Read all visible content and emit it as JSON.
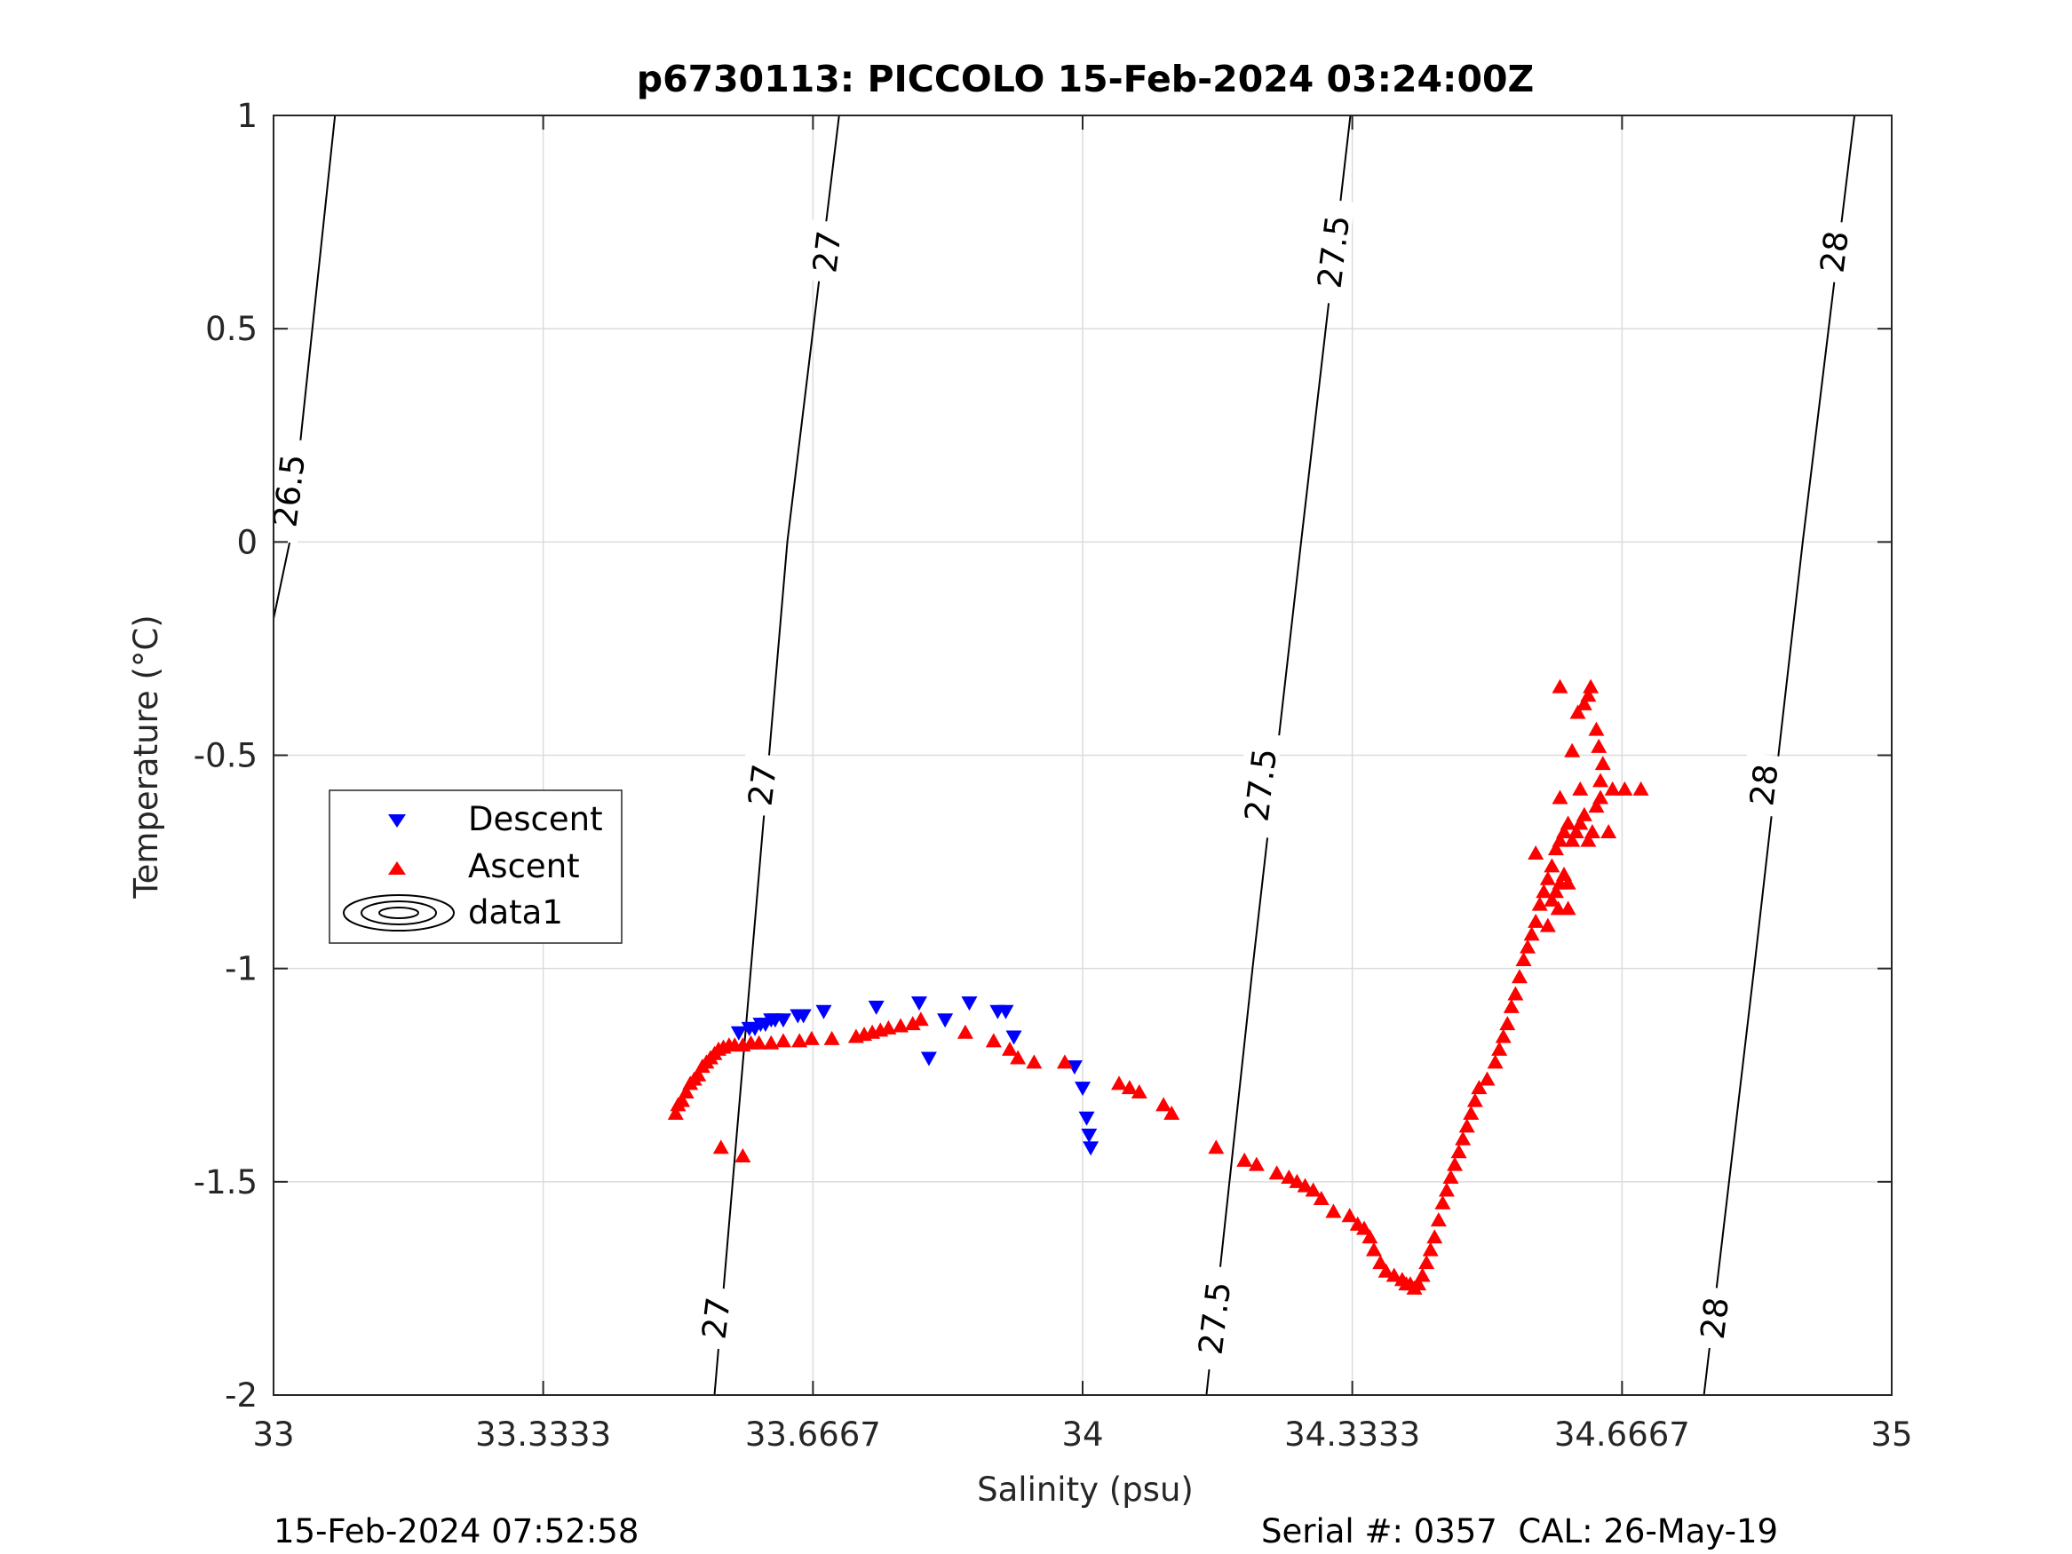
{
  "chart_data": {
    "type": "scatter",
    "title": "p6730113: PICCOLO 15-Feb-2024 03:24:00Z",
    "xlabel": "Salinity (psu)",
    "ylabel": "Temperature (°C)",
    "xlim": [
      33,
      35
    ],
    "ylim": [
      -2,
      1
    ],
    "x_ticks": [
      "33",
      "33.3333",
      "33.6667",
      "34",
      "34.3333",
      "34.6667",
      "35"
    ],
    "y_ticks": [
      "-2",
      "-1.5",
      "-1",
      "-0.5",
      "0",
      "0.5",
      "1"
    ],
    "grid": true,
    "legend": {
      "position": "left-middle",
      "entries": [
        {
          "label": "Descent",
          "marker": "triangle-down",
          "color": "#0000ff"
        },
        {
          "label": "Ascent",
          "marker": "triangle-up",
          "color": "#ff0000"
        },
        {
          "label": "data1",
          "marker": "contour",
          "color": "#000000"
        }
      ]
    },
    "contours": [
      {
        "label": "26.5",
        "points": [
          [
            33.0,
            -0.18
          ],
          [
            33.02,
            0.0
          ],
          [
            33.076,
            1.0
          ]
        ]
      },
      {
        "label": "27",
        "points": [
          [
            33.545,
            -2.0
          ],
          [
            33.59,
            -1.0
          ],
          [
            33.635,
            0.0
          ],
          [
            33.699,
            1.0
          ]
        ]
      },
      {
        "label": "27.5",
        "points": [
          [
            34.153,
            -2.0
          ],
          [
            34.21,
            -1.0
          ],
          [
            34.27,
            0.0
          ],
          [
            34.331,
            1.0
          ]
        ]
      },
      {
        "label": "28",
        "points": [
          [
            34.768,
            -2.0
          ],
          [
            34.83,
            -1.0
          ],
          [
            34.89,
            0.0
          ],
          [
            34.954,
            1.0
          ]
        ]
      }
    ],
    "contour_labels": [
      {
        "level": "26.5",
        "x": 33.02,
        "y": 0.12
      },
      {
        "level": "27",
        "x": 33.685,
        "y": 0.68
      },
      {
        "level": "27",
        "x": 33.605,
        "y": -0.57
      },
      {
        "level": "27",
        "x": 33.548,
        "y": -1.82
      },
      {
        "level": "27.5",
        "x": 34.311,
        "y": 0.68
      },
      {
        "level": "27.5",
        "x": 34.221,
        "y": -0.57
      },
      {
        "level": "27.5",
        "x": 34.164,
        "y": -1.82
      },
      {
        "level": "28",
        "x": 34.93,
        "y": 0.68
      },
      {
        "level": "28",
        "x": 34.843,
        "y": -0.57
      },
      {
        "level": "28",
        "x": 34.782,
        "y": -1.82
      }
    ],
    "series": [
      {
        "name": "Descent",
        "marker": "triangle-down",
        "color": "#0000ff",
        "points": [
          [
            33.575,
            -1.15
          ],
          [
            33.588,
            -1.14
          ],
          [
            33.595,
            -1.14
          ],
          [
            33.602,
            -1.13
          ],
          [
            33.608,
            -1.13
          ],
          [
            33.615,
            -1.12
          ],
          [
            33.62,
            -1.12
          ],
          [
            33.63,
            -1.12
          ],
          [
            33.648,
            -1.11
          ],
          [
            33.655,
            -1.11
          ],
          [
            33.68,
            -1.1
          ],
          [
            33.745,
            -1.09
          ],
          [
            33.798,
            -1.08
          ],
          [
            33.81,
            -1.21
          ],
          [
            33.83,
            -1.12
          ],
          [
            33.86,
            -1.08
          ],
          [
            33.895,
            -1.1
          ],
          [
            33.905,
            -1.1
          ],
          [
            33.915,
            -1.16
          ],
          [
            33.99,
            -1.23
          ],
          [
            34.0,
            -1.28
          ],
          [
            34.005,
            -1.35
          ],
          [
            34.008,
            -1.39
          ],
          [
            34.01,
            -1.42
          ]
        ]
      },
      {
        "name": "Ascent",
        "marker": "triangle-up",
        "color": "#ff0000",
        "points": [
          [
            33.497,
            -1.34
          ],
          [
            33.5,
            -1.32
          ],
          [
            33.505,
            -1.31
          ],
          [
            33.51,
            -1.29
          ],
          [
            33.515,
            -1.27
          ],
          [
            33.52,
            -1.26
          ],
          [
            33.525,
            -1.25
          ],
          [
            33.53,
            -1.23
          ],
          [
            33.535,
            -1.22
          ],
          [
            33.54,
            -1.21
          ],
          [
            33.545,
            -1.2
          ],
          [
            33.55,
            -1.19
          ],
          [
            33.556,
            -1.185
          ],
          [
            33.563,
            -1.18
          ],
          [
            33.57,
            -1.18
          ],
          [
            33.58,
            -1.18
          ],
          [
            33.59,
            -1.175
          ],
          [
            33.6,
            -1.175
          ],
          [
            33.615,
            -1.175
          ],
          [
            33.63,
            -1.17
          ],
          [
            33.65,
            -1.17
          ],
          [
            33.665,
            -1.165
          ],
          [
            33.69,
            -1.165
          ],
          [
            33.72,
            -1.16
          ],
          [
            33.73,
            -1.155
          ],
          [
            33.74,
            -1.15
          ],
          [
            33.75,
            -1.145
          ],
          [
            33.76,
            -1.14
          ],
          [
            33.775,
            -1.135
          ],
          [
            33.79,
            -1.13
          ],
          [
            33.8,
            -1.12
          ],
          [
            33.553,
            -1.42
          ],
          [
            33.58,
            -1.44
          ],
          [
            33.855,
            -1.15
          ],
          [
            33.89,
            -1.17
          ],
          [
            33.91,
            -1.19
          ],
          [
            33.92,
            -1.21
          ],
          [
            33.94,
            -1.22
          ],
          [
            33.978,
            -1.22
          ],
          [
            34.045,
            -1.27
          ],
          [
            34.058,
            -1.28
          ],
          [
            34.07,
            -1.29
          ],
          [
            34.1,
            -1.32
          ],
          [
            34.11,
            -1.34
          ],
          [
            34.165,
            -1.42
          ],
          [
            34.2,
            -1.45
          ],
          [
            34.215,
            -1.46
          ],
          [
            34.24,
            -1.48
          ],
          [
            34.255,
            -1.49
          ],
          [
            34.265,
            -1.5
          ],
          [
            34.275,
            -1.51
          ],
          [
            34.285,
            -1.52
          ],
          [
            34.295,
            -1.54
          ],
          [
            34.31,
            -1.57
          ],
          [
            34.33,
            -1.58
          ],
          [
            34.34,
            -1.6
          ],
          [
            34.348,
            -1.61
          ],
          [
            34.355,
            -1.63
          ],
          [
            34.36,
            -1.66
          ],
          [
            34.368,
            -1.69
          ],
          [
            34.375,
            -1.71
          ],
          [
            34.385,
            -1.72
          ],
          [
            34.395,
            -1.73
          ],
          [
            34.4,
            -1.74
          ],
          [
            34.405,
            -1.74
          ],
          [
            34.41,
            -1.75
          ],
          [
            34.415,
            -1.74
          ],
          [
            34.42,
            -1.72
          ],
          [
            34.425,
            -1.69
          ],
          [
            34.43,
            -1.66
          ],
          [
            34.435,
            -1.63
          ],
          [
            34.44,
            -1.59
          ],
          [
            34.445,
            -1.55
          ],
          [
            34.45,
            -1.52
          ],
          [
            34.455,
            -1.49
          ],
          [
            34.46,
            -1.46
          ],
          [
            34.465,
            -1.43
          ],
          [
            34.47,
            -1.4
          ],
          [
            34.475,
            -1.37
          ],
          [
            34.48,
            -1.34
          ],
          [
            34.485,
            -1.31
          ],
          [
            34.49,
            -1.28
          ],
          [
            34.5,
            -1.26
          ],
          [
            34.51,
            -1.22
          ],
          [
            34.515,
            -1.19
          ],
          [
            34.52,
            -1.16
          ],
          [
            34.525,
            -1.13
          ],
          [
            34.53,
            -1.09
          ],
          [
            34.535,
            -1.06
          ],
          [
            34.54,
            -1.02
          ],
          [
            34.545,
            -0.98
          ],
          [
            34.55,
            -0.95
          ],
          [
            34.555,
            -0.92
          ],
          [
            34.56,
            -0.89
          ],
          [
            34.565,
            -0.85
          ],
          [
            34.57,
            -0.82
          ],
          [
            34.575,
            -0.79
          ],
          [
            34.58,
            -0.76
          ],
          [
            34.58,
            -0.84
          ],
          [
            34.585,
            -0.82
          ],
          [
            34.59,
            -0.8
          ],
          [
            34.595,
            -0.78
          ],
          [
            34.6,
            -0.8
          ],
          [
            34.585,
            -0.72
          ],
          [
            34.59,
            -0.7
          ],
          [
            34.595,
            -0.68
          ],
          [
            34.6,
            -0.66
          ],
          [
            34.605,
            -0.7
          ],
          [
            34.61,
            -0.68
          ],
          [
            34.615,
            -0.66
          ],
          [
            34.62,
            -0.64
          ],
          [
            34.625,
            -0.7
          ],
          [
            34.63,
            -0.68
          ],
          [
            34.635,
            -0.62
          ],
          [
            34.64,
            -0.6
          ],
          [
            34.64,
            -0.56
          ],
          [
            34.643,
            -0.52
          ],
          [
            34.638,
            -0.48
          ],
          [
            34.635,
            -0.44
          ],
          [
            34.615,
            -0.58
          ],
          [
            34.59,
            -0.6
          ],
          [
            34.59,
            -0.34
          ],
          [
            34.605,
            -0.49
          ],
          [
            34.612,
            -0.4
          ],
          [
            34.625,
            -0.36
          ],
          [
            34.628,
            -0.34
          ],
          [
            34.62,
            -0.38
          ],
          [
            34.65,
            -0.68
          ],
          [
            34.655,
            -0.58
          ],
          [
            34.67,
            -0.58
          ],
          [
            34.69,
            -0.58
          ],
          [
            34.56,
            -0.73
          ],
          [
            34.575,
            -0.9
          ],
          [
            34.588,
            -0.86
          ],
          [
            34.6,
            -0.86
          ]
        ]
      }
    ]
  },
  "footer": {
    "timestamp": "15-Feb-2024 07:52:58",
    "serial": "Serial #: 0357  CAL: 26-May-19"
  }
}
